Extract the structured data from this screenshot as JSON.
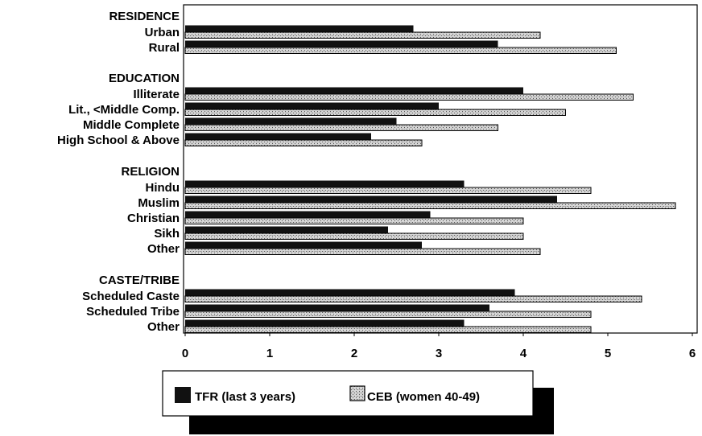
{
  "chart_data": {
    "type": "bar",
    "orientation": "horizontal",
    "title": "",
    "xlabel": "",
    "ylabel": "",
    "xlim": [
      0,
      6
    ],
    "x_ticks": [
      "0",
      "1",
      "2",
      "3",
      "4",
      "5",
      "6"
    ],
    "grid": false,
    "legend_position": "bottom",
    "groups": [
      {
        "heading": "RESIDENCE",
        "categories": [
          {
            "label": "Urban",
            "tfr": 2.7,
            "ceb": 4.2
          },
          {
            "label": "Rural",
            "tfr": 3.7,
            "ceb": 5.1
          }
        ]
      },
      {
        "heading": "EDUCATION",
        "categories": [
          {
            "label": "Illiterate",
            "tfr": 4.0,
            "ceb": 5.3
          },
          {
            "label": "Lit., <Middle Comp.",
            "tfr": 3.0,
            "ceb": 4.5
          },
          {
            "label": "Middle Complete",
            "tfr": 2.5,
            "ceb": 3.7
          },
          {
            "label": "High School & Above",
            "tfr": 2.2,
            "ceb": 2.8
          }
        ]
      },
      {
        "heading": "RELIGION",
        "categories": [
          {
            "label": "Hindu",
            "tfr": 3.3,
            "ceb": 4.8
          },
          {
            "label": "Muslim",
            "tfr": 4.4,
            "ceb": 5.8
          },
          {
            "label": "Christian",
            "tfr": 2.9,
            "ceb": 4.0
          },
          {
            "label": "Sikh",
            "tfr": 2.4,
            "ceb": 4.0
          },
          {
            "label": "Other",
            "tfr": 2.8,
            "ceb": 4.2
          }
        ]
      },
      {
        "heading": "CASTE/TRIBE",
        "categories": [
          {
            "label": "Scheduled Caste",
            "tfr": 3.9,
            "ceb": 5.4
          },
          {
            "label": "Scheduled Tribe",
            "tfr": 3.6,
            "ceb": 4.8
          },
          {
            "label": "Other",
            "tfr": 3.3,
            "ceb": 4.8
          }
        ]
      }
    ],
    "series": [
      {
        "name": "TFR (last 3 years)",
        "key": "tfr",
        "color": "#111111"
      },
      {
        "name": "CEB (women 40-49)",
        "key": "ceb",
        "color": "#9a9a9a"
      }
    ]
  },
  "legend": {
    "items": [
      "TFR (last 3 years)",
      "CEB (women 40-49)"
    ]
  }
}
